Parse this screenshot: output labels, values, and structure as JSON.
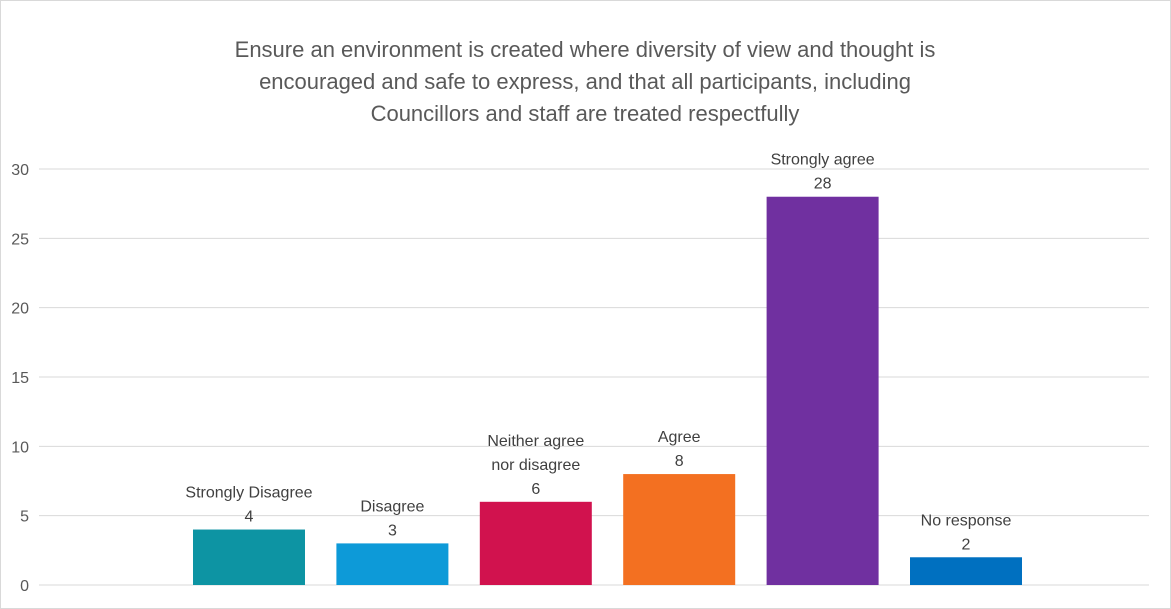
{
  "chart_data": {
    "type": "bar",
    "title_lines": [
      "Ensure an environment is created where diversity of view and thought is",
      "encouraged and safe to express, and that all participants, including",
      "Councillors and staff are treated respectfully"
    ],
    "categories": [
      "Strongly Disagree",
      "Disagree",
      "Neither agree nor disagree",
      "Agree",
      "Strongly agree",
      "No response"
    ],
    "category_label_lines": [
      [
        "Strongly Disagree"
      ],
      [
        "Disagree"
      ],
      [
        "Neither agree",
        "nor disagree"
      ],
      [
        "Agree"
      ],
      [
        "Strongly agree"
      ],
      [
        "No response"
      ]
    ],
    "values": [
      4,
      3,
      6,
      8,
      28,
      2
    ],
    "colors": [
      "#0d94a3",
      "#0d9ad8",
      "#d1124e",
      "#f37021",
      "#7030a0",
      "#0070c0"
    ],
    "ylim": [
      0,
      30
    ],
    "yticks": [
      0,
      5,
      10,
      15,
      20,
      25,
      30
    ],
    "grid": true,
    "legend": "none",
    "xlabel": "",
    "ylabel": ""
  }
}
